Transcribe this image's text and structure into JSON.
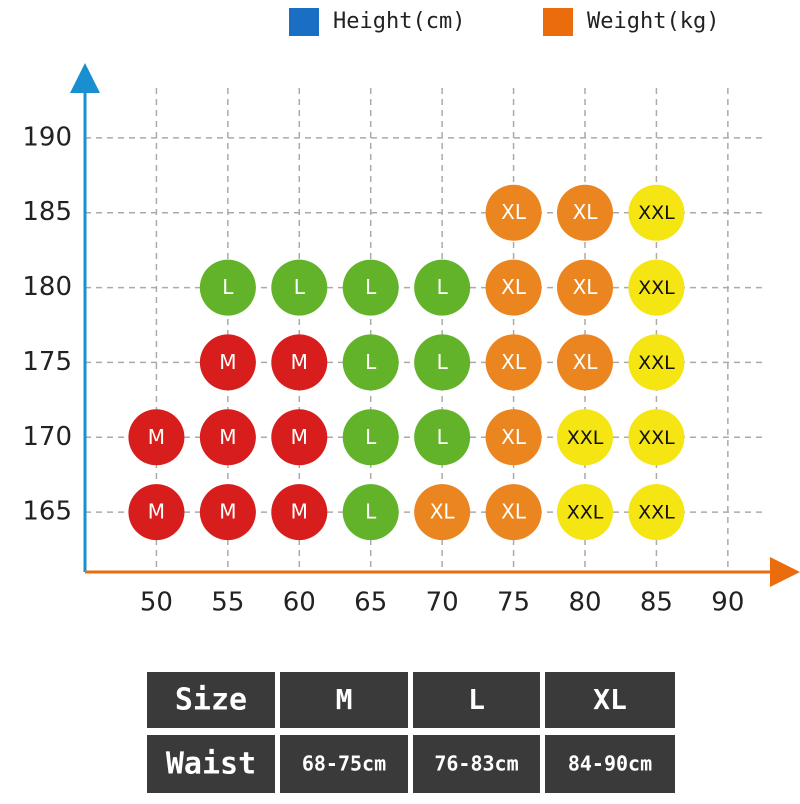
{
  "chart_data": {
    "type": "scatter",
    "legend": [
      {
        "label": "Height(cm)",
        "color": "#1a6fc4"
      },
      {
        "label": "Weight(kg)",
        "color": "#ea6c0c"
      }
    ],
    "series": [
      {
        "name": "M",
        "color": "#d81d1d",
        "x": [
          50,
          55,
          60,
          50,
          55,
          60,
          55,
          60
        ],
        "y": [
          165,
          165,
          165,
          170,
          170,
          170,
          175,
          175
        ]
      },
      {
        "name": "L",
        "color": "#62b32a",
        "x": [
          65,
          65,
          70,
          65,
          70,
          55,
          60,
          65,
          70
        ],
        "y": [
          165,
          170,
          170,
          175,
          175,
          180,
          180,
          180,
          180
        ]
      },
      {
        "name": "XL",
        "color": "#ea8520",
        "x": [
          70,
          75,
          75,
          75,
          80,
          75,
          80,
          75,
          80
        ],
        "y": [
          165,
          165,
          170,
          175,
          175,
          180,
          180,
          185,
          185
        ]
      },
      {
        "name": "XXL",
        "color": "#f5e513",
        "x": [
          80,
          85,
          80,
          85,
          85,
          85,
          85
        ],
        "y": [
          165,
          165,
          170,
          170,
          175,
          180,
          185
        ]
      }
    ],
    "xlim": [
      45,
      94
    ],
    "xticks": [
      50,
      55,
      60,
      65,
      70,
      75,
      80,
      85,
      90
    ],
    "ylim": [
      161,
      194
    ],
    "yticks": [
      165,
      170,
      175,
      180,
      185,
      190
    ],
    "grid": true
  },
  "table": {
    "rows": [
      [
        "Size",
        "M",
        "L",
        "XL"
      ],
      [
        "Waist",
        "68-75cm",
        "76-83cm",
        "84-90cm"
      ]
    ]
  }
}
